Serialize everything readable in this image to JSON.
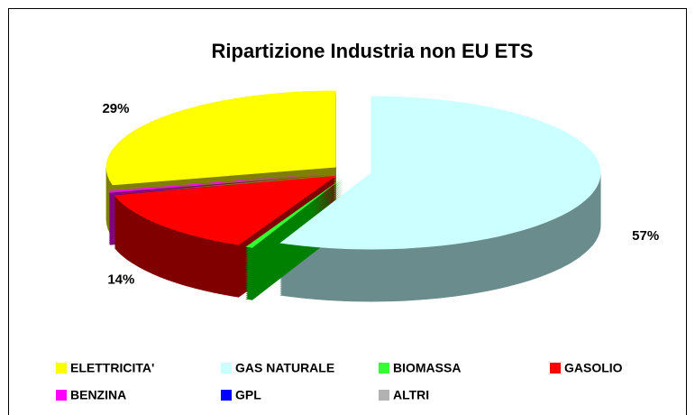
{
  "chart_data": {
    "type": "pie",
    "title": "Ripartizione Industria non EU ETS",
    "categories": [
      "ELETTRICITA'",
      "GAS NATURALE",
      "BIOMASSA",
      "GASOLIO",
      "BENZINA",
      "GPL",
      "ALTRI"
    ],
    "values": [
      29,
      57,
      0.5,
      14,
      0.4,
      0,
      0
    ],
    "value_labels": [
      "29%",
      "57%",
      null,
      "14%",
      null,
      null,
      null
    ],
    "colors": [
      "#ffff00",
      "#ccffff",
      "#33ff33",
      "#ff0000",
      "#ff00ff",
      "#0000ff",
      "#b2b2b2"
    ],
    "side_colors": [
      "#808000",
      "#6b8c8c",
      "#008000",
      "#800000",
      "#800080",
      "#000080",
      "#666666"
    ],
    "legend": "bottom"
  }
}
